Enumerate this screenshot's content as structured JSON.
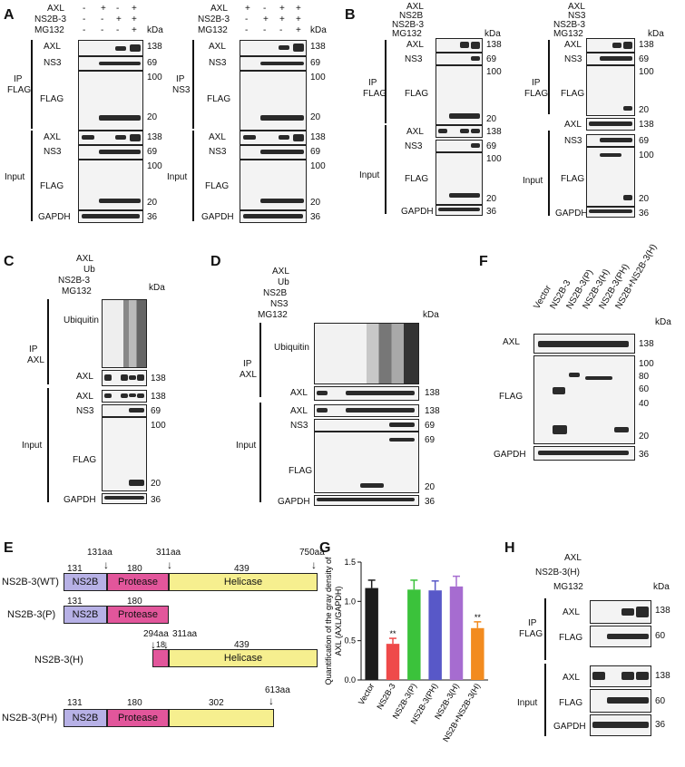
{
  "panel_labels": {
    "A": "A",
    "B": "B",
    "C": "C",
    "D": "D",
    "E": "E",
    "F": "F",
    "G": "G",
    "H": "H"
  },
  "common": {
    "axl": "AXL",
    "ns3": "NS3",
    "flag": "FLAG",
    "gapdh": "GAPDH",
    "kda": "kDa",
    "ip": "IP",
    "input": "Input",
    "ubiquitin": "Ubiquitin",
    "mg132": "MG132",
    "ns2b3": "NS2B-3",
    "ns2b": "NS2B",
    "ub": "Ub",
    "mw138": "138",
    "mw69": "69",
    "mw100": "100",
    "mw20": "20",
    "mw36": "36",
    "mw80": "80",
    "mw60": "60",
    "mw40": "40",
    "plus": "+",
    "minus": "-"
  },
  "panelA": {
    "left": {
      "ip": "FLAG",
      "axl": [
        "-",
        "+",
        "-",
        "+"
      ],
      "ns2b3": [
        "-",
        "-",
        "+",
        "+"
      ],
      "mg132": [
        "-",
        "-",
        "-",
        "+"
      ]
    },
    "right": {
      "ip": "NS3",
      "axl": [
        "+",
        "-",
        "+",
        "+"
      ],
      "ns2b3": [
        "-",
        "+",
        "+",
        "+"
      ],
      "mg132": [
        "-",
        "-",
        "-",
        "+"
      ]
    }
  },
  "panelB": {
    "left": {
      "ip": "FLAG",
      "rows": [
        "AXL",
        "NS2B",
        "NS2B-3",
        "MG132"
      ],
      "vals": [
        [
          "+",
          "-",
          "+",
          "+"
        ],
        [
          "-",
          "+",
          "+",
          "-"
        ],
        [
          "-",
          "-",
          "-",
          "+"
        ],
        [
          "-",
          "-",
          "+",
          "+"
        ]
      ]
    },
    "right": {
      "ip": "FLAG",
      "rows": [
        "AXL",
        "NS3",
        "NS2B-3",
        "MG132"
      ],
      "vals": [
        [
          "+",
          "-",
          "+",
          "+"
        ],
        [
          "-",
          "+",
          "+",
          "-"
        ],
        [
          "-",
          "-",
          "-",
          "+"
        ],
        [
          "-",
          "-",
          "+",
          "+"
        ]
      ]
    }
  },
  "panelC": {
    "ip": "AXL",
    "rows": [
      "AXL",
      "Ub",
      "NS2B-3",
      "MG132"
    ],
    "vals": [
      [
        "+",
        "-",
        "+",
        "+",
        "+"
      ],
      [
        "-",
        "+",
        "+",
        "+",
        "+"
      ],
      [
        "-",
        "-",
        "-",
        "+",
        "+"
      ],
      [
        "-",
        "-",
        "-",
        "-",
        "+"
      ]
    ]
  },
  "panelD": {
    "ip": "AXL",
    "rows": [
      "AXL",
      "Ub",
      "NS2B",
      "NS3",
      "MG132"
    ],
    "vals": [
      [
        "+",
        "-",
        "+",
        "+",
        "+",
        "+",
        "+"
      ],
      [
        "-",
        "+",
        "+",
        "+",
        "+",
        "+",
        "+"
      ],
      [
        "-",
        "-",
        "-",
        "+",
        "+",
        "-",
        "-"
      ],
      [
        "-",
        "-",
        "-",
        "-",
        "-",
        "+",
        "+"
      ],
      [
        "-",
        "-",
        "-",
        "-",
        "+",
        "-",
        "+"
      ]
    ]
  },
  "panelF": {
    "lanes": [
      "Vector",
      "NS2B-3",
      "NS2B-3(P)",
      "NS2B-3(H)",
      "NS2B-3(PH)",
      "NS2B+NS2B-3(H)"
    ]
  },
  "panelE": {
    "constructs": [
      {
        "name": "NS2B-3(WT)",
        "top": [
          "131aa",
          "311aa",
          "750aa"
        ],
        "nums": [
          "131",
          "180",
          "439"
        ],
        "domains": [
          "NS2B",
          "Protease",
          "Helicase"
        ]
      },
      {
        "name": "NS2B-3(P)",
        "nums": [
          "131",
          "180"
        ],
        "domains": [
          "NS2B",
          "Protease"
        ]
      },
      {
        "name": "NS2B-3(H)",
        "top": [
          "294aa",
          "311aa"
        ],
        "nums": [
          "18",
          "439"
        ],
        "domains": [
          "Helicase"
        ]
      },
      {
        "name": "NS2B-3(PH)",
        "top": [
          "613aa"
        ],
        "nums": [
          "131",
          "180",
          "302"
        ],
        "domains": [
          "NS2B",
          "Protease"
        ]
      }
    ],
    "colors": {
      "ns2b": "#b7b1e6",
      "protease": "#e2569b",
      "helicase": "#f6ef8f"
    }
  },
  "chart_data": {
    "type": "bar",
    "categories": [
      "Vector",
      "NS2B-3",
      "NS2B-3(P)",
      "NS2B-3(PH)",
      "NS2B-3(H)",
      "NS2B+NS2B-3(H)"
    ],
    "values": [
      1.17,
      0.46,
      1.15,
      1.14,
      1.19,
      0.66
    ],
    "errors": [
      0.1,
      0.07,
      0.12,
      0.12,
      0.13,
      0.08
    ],
    "sig": [
      "",
      "**",
      "",
      "",
      "",
      "**"
    ],
    "ylabel": "Quantification of the gray density of AXL (AXL/GAPDH)",
    "ylim": [
      0,
      1.5
    ],
    "yticks": [
      "0.0",
      "0.5",
      "1.0",
      "1.5"
    ],
    "colors": [
      "#1c1c1c",
      "#ef4a4a",
      "#3bc23b",
      "#5858c8",
      "#a66cd0",
      "#f28b1f"
    ]
  },
  "panelH": {
    "rows": [
      "AXL",
      "NS2B-3(H)",
      "MG132"
    ],
    "vals": [
      [
        "+",
        "-",
        "+",
        "+"
      ],
      [
        "-",
        "+",
        "+",
        "+"
      ],
      [
        "-",
        "-",
        "-",
        "+"
      ]
    ],
    "ip": "FLAG"
  }
}
